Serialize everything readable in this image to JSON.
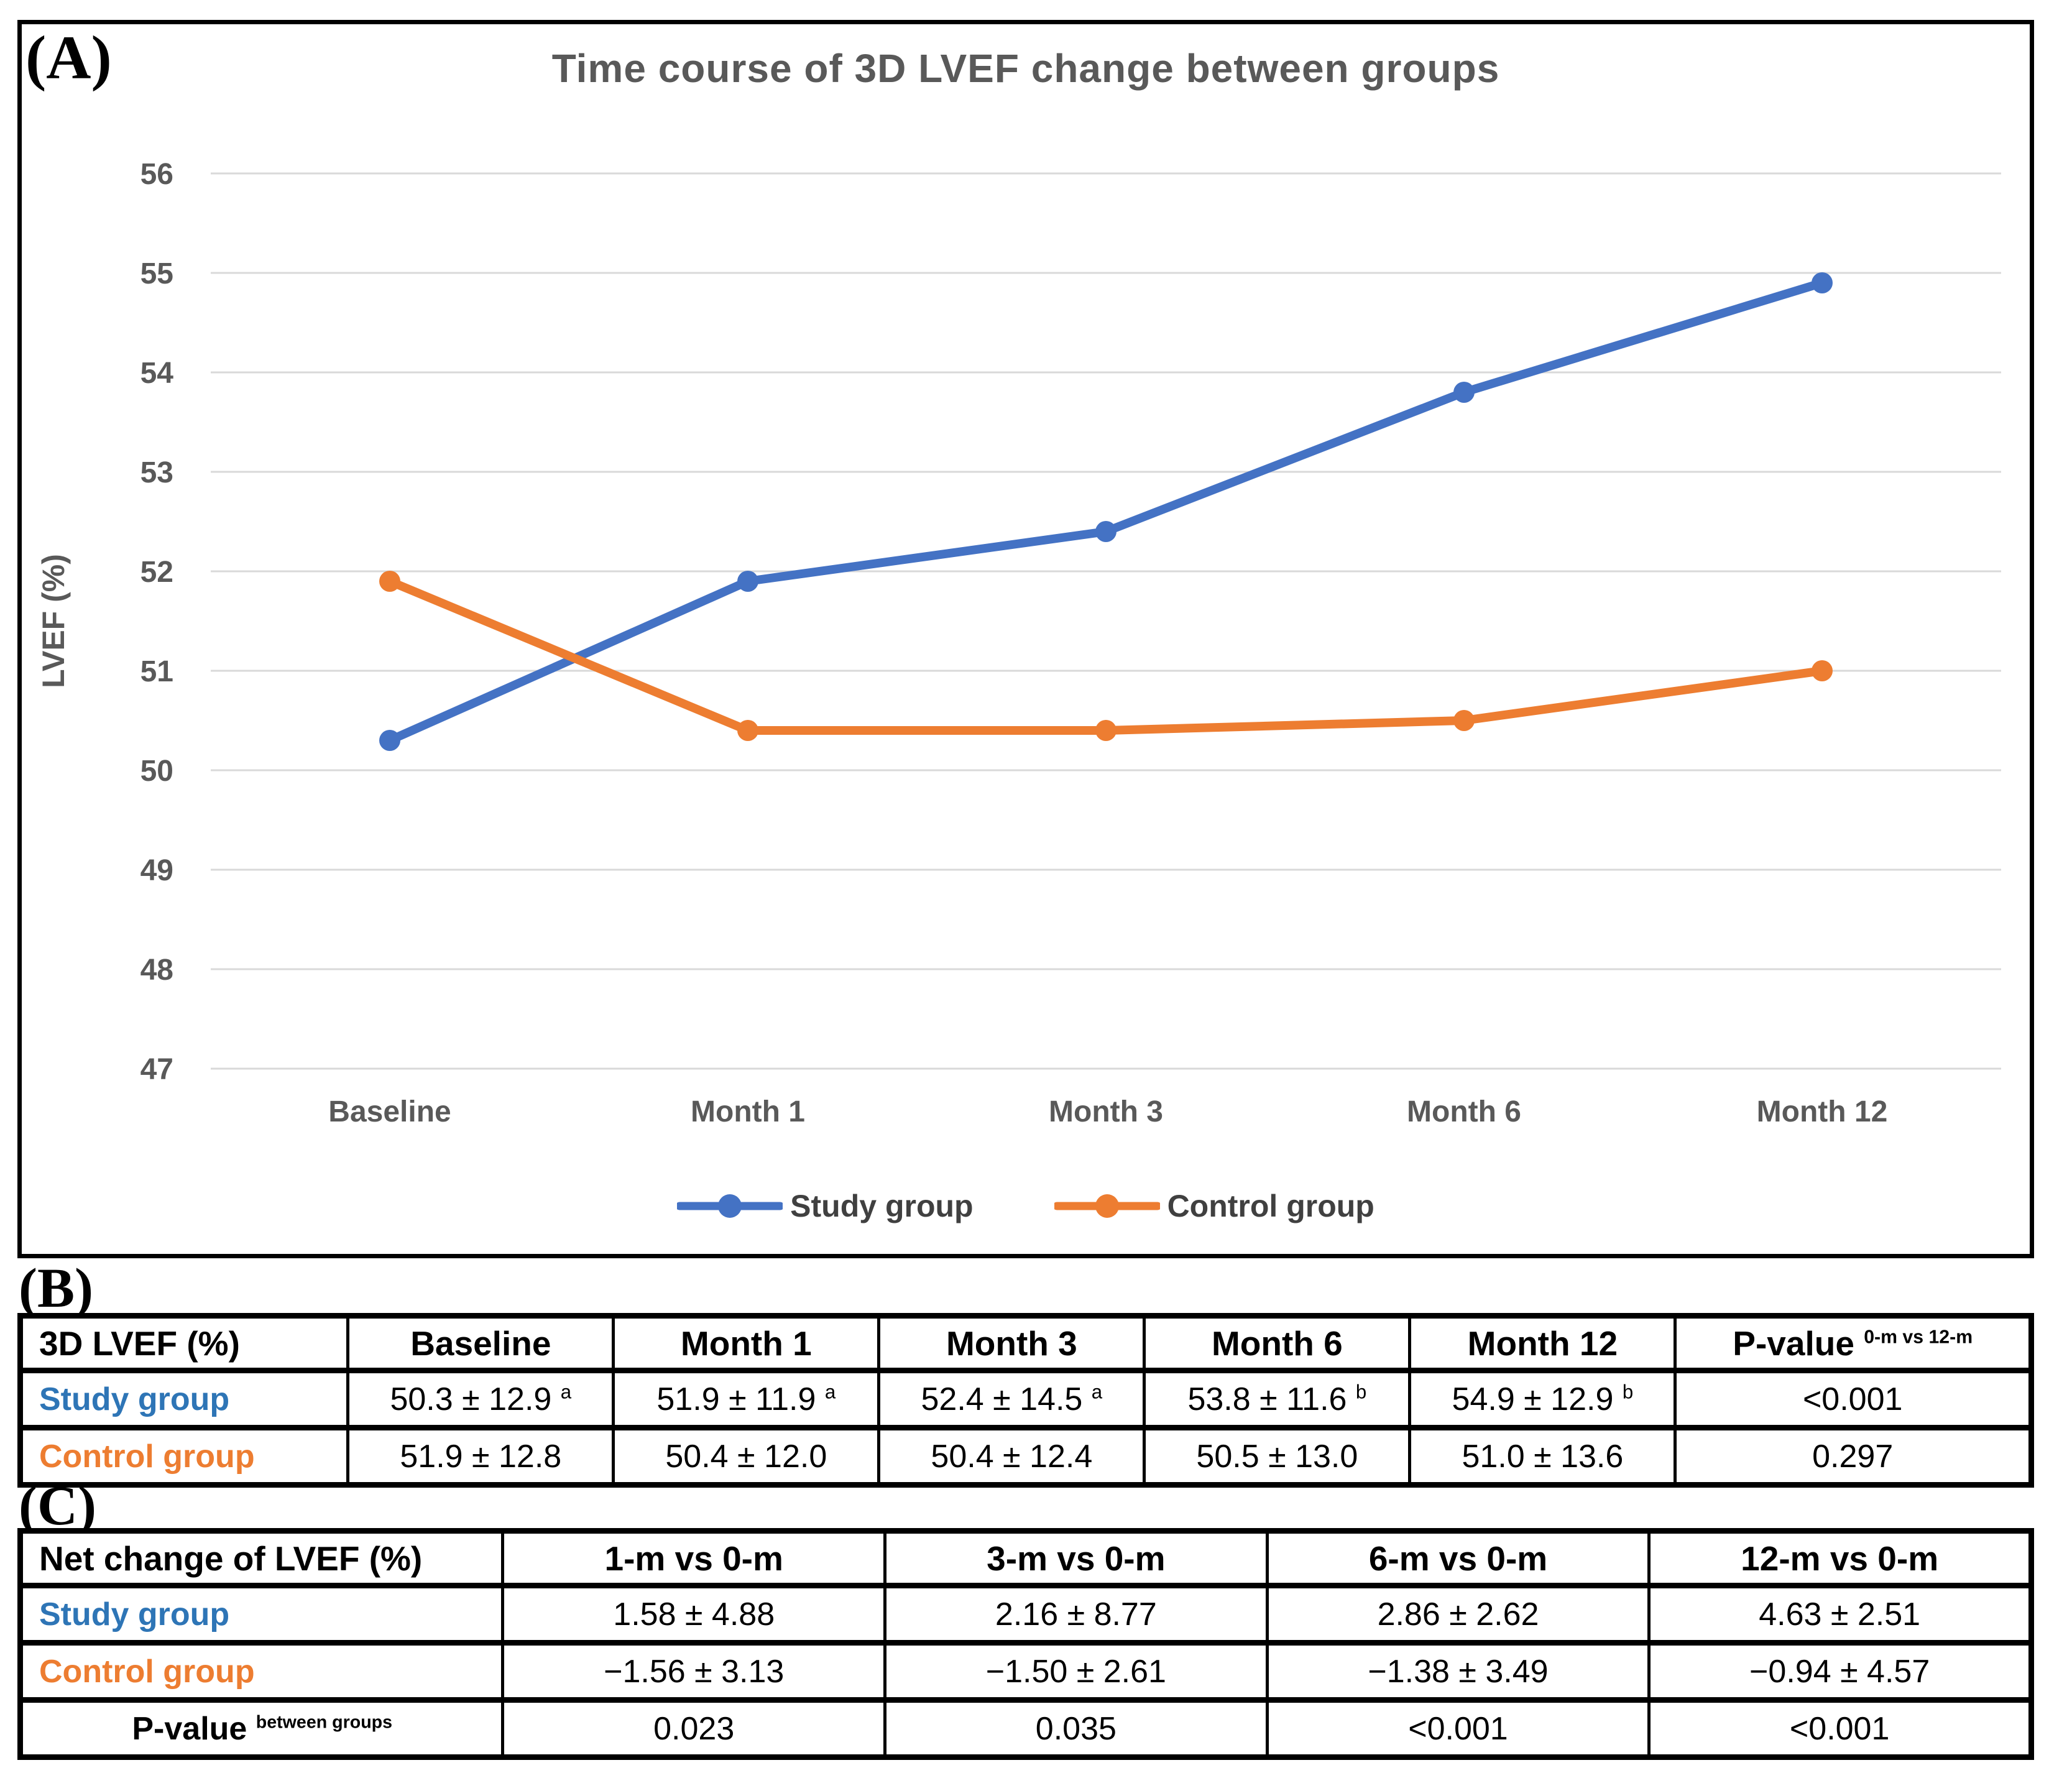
{
  "panel_a_label": "(A)",
  "panel_b_label": "(B)",
  "panel_c_label": "(C)",
  "chart_data": {
    "type": "line",
    "title": "Time course of 3D LVEF change between groups",
    "xlabel": "",
    "ylabel": "LVEF (%)",
    "categories": [
      "Baseline",
      "Month 1",
      "Month 3",
      "Month 6",
      "Month 12"
    ],
    "yticks": [
      56,
      55,
      54,
      53,
      52,
      51,
      50,
      49,
      48,
      47
    ],
    "ylim": [
      47,
      56
    ],
    "grid": true,
    "legend_position": "bottom",
    "series": [
      {
        "name": "Study group",
        "color": "#4472C4",
        "values": [
          50.3,
          51.9,
          52.4,
          53.8,
          54.9
        ]
      },
      {
        "name": "Control group",
        "color": "#ED7D31",
        "values": [
          51.9,
          50.4,
          50.4,
          50.5,
          51.0
        ]
      }
    ],
    "axis_color": "#595959",
    "gridline_color": "#d9d9d9"
  },
  "table_b": {
    "col_widths": [
      "16.3%",
      "13.2%",
      "13.2%",
      "13.2%",
      "13.2%",
      "13.2%",
      "17.7%"
    ],
    "headers": [
      {
        "text": "3D LVEF (%)"
      },
      {
        "text": "Baseline"
      },
      {
        "text": "Month 1"
      },
      {
        "text": "Month 3"
      },
      {
        "text": "Month 6"
      },
      {
        "text": "Month 12"
      },
      {
        "text": "P-value",
        "sup": "0-m vs 12-m"
      }
    ],
    "rows": [
      {
        "label": "Study group",
        "color": "#2E75B6",
        "cells": [
          {
            "text": "50.3 ± 12.9",
            "sup": "a"
          },
          {
            "text": "51.9 ± 11.9",
            "sup": "a"
          },
          {
            "text": "52.4 ± 14.5",
            "sup": "a"
          },
          {
            "text": "53.8 ± 11.6",
            "sup": "b"
          },
          {
            "text": "54.9 ± 12.9",
            "sup": "b"
          },
          {
            "text": "<0.001"
          }
        ]
      },
      {
        "label": "Control group",
        "color": "#ED7D31",
        "cells": [
          {
            "text": "51.9 ± 12.8"
          },
          {
            "text": "50.4 ± 12.0"
          },
          {
            "text": "50.4 ± 12.4"
          },
          {
            "text": "50.5 ± 13.0"
          },
          {
            "text": "51.0 ± 13.6"
          },
          {
            "text": "0.297"
          }
        ]
      }
    ]
  },
  "table_c": {
    "col_widths": [
      "24.0%",
      "19.0%",
      "19.0%",
      "19.0%",
      "19.0%"
    ],
    "headers": [
      {
        "text": "Net change of LVEF (%)"
      },
      {
        "text": "1-m vs 0-m"
      },
      {
        "text": "3-m vs 0-m"
      },
      {
        "text": "6-m vs 0-m"
      },
      {
        "text": "12-m vs 0-m"
      }
    ],
    "rows": [
      {
        "label": "Study group",
        "color": "#2E75B6",
        "cells": [
          {
            "text": "1.58 ± 4.88"
          },
          {
            "text": "2.16 ± 8.77"
          },
          {
            "text": "2.86 ± 2.62"
          },
          {
            "text": "4.63 ± 2.51"
          }
        ]
      },
      {
        "label": "Control group",
        "color": "#ED7D31",
        "cells": [
          {
            "text": "−1.56 ± 3.13"
          },
          {
            "text": "−1.50 ± 2.61"
          },
          {
            "text": "−1.38 ± 3.49"
          },
          {
            "text": "−0.94 ± 4.57"
          }
        ]
      },
      {
        "label": "P-value",
        "label_sup": "between groups",
        "color": "#000000",
        "label_centered": true,
        "cells": [
          {
            "text": "0.023"
          },
          {
            "text": "0.035"
          },
          {
            "text": "<0.001"
          },
          {
            "text": "<0.001"
          }
        ]
      }
    ]
  }
}
